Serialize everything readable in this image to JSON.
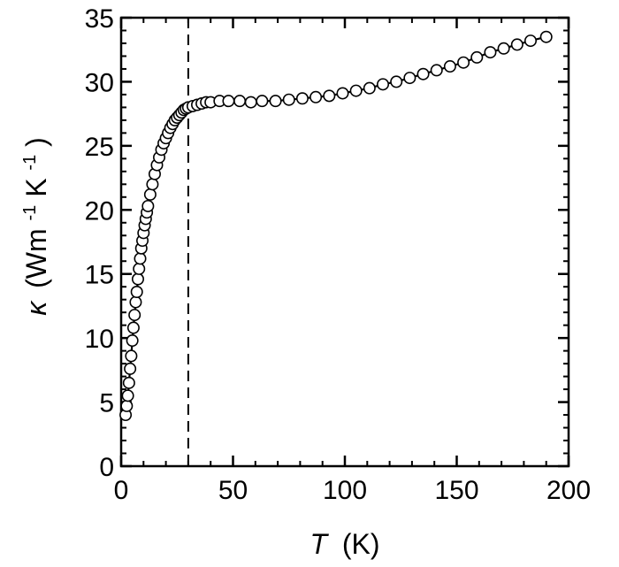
{
  "chart_data": {
    "type": "scatter",
    "xlabel": {
      "symbol": "T",
      "unit": "(K)"
    },
    "ylabel": {
      "symbol": "κ",
      "open": "(Wm",
      "exp1": "-1",
      "mid": "K",
      "exp2": "-1",
      "close": ")"
    },
    "xlim": [
      0,
      200
    ],
    "ylim": [
      0,
      35
    ],
    "xticks": [
      "0",
      "50",
      "100",
      "150",
      "200"
    ],
    "yticks": [
      "0",
      "5",
      "10",
      "15",
      "20",
      "25",
      "30",
      "35"
    ],
    "xtick_values": [
      0,
      50,
      100,
      150,
      200
    ],
    "ytick_values": [
      0,
      5,
      10,
      15,
      20,
      25,
      30,
      35
    ],
    "x_minor_step": 10,
    "y_minor_step": 1,
    "grid": false,
    "reference_line": {
      "style": "dashed",
      "x": 30
    },
    "series": [
      {
        "marker": "open-circle",
        "line": "solid",
        "x": [
          2,
          2.5,
          3,
          3.5,
          4,
          4.5,
          5,
          5.5,
          6,
          6.5,
          7,
          7.5,
          8,
          8.5,
          9,
          9.5,
          10,
          10.5,
          11,
          11.5,
          12,
          13,
          14,
          15,
          16,
          17,
          18,
          19,
          20,
          21,
          22,
          23,
          24,
          25,
          26,
          27,
          28,
          29,
          30,
          32,
          34,
          36,
          38,
          40,
          44,
          48,
          53,
          58,
          63,
          69,
          75,
          81,
          87,
          93,
          99,
          105,
          111,
          117,
          123,
          129,
          135,
          141,
          147,
          153,
          159,
          165,
          171,
          177,
          183,
          190
        ],
        "y": [
          4.0,
          4.7,
          5.5,
          6.5,
          7.6,
          8.6,
          9.8,
          10.8,
          11.8,
          12.8,
          13.6,
          14.6,
          15.4,
          16.2,
          17.0,
          17.6,
          18.2,
          18.8,
          19.3,
          19.8,
          20.3,
          21.2,
          22.0,
          22.8,
          23.5,
          24.1,
          24.7,
          25.2,
          25.6,
          26.0,
          26.4,
          26.7,
          27.0,
          27.2,
          27.4,
          27.6,
          27.8,
          27.9,
          28.0,
          28.1,
          28.2,
          28.3,
          28.4,
          28.4,
          28.5,
          28.5,
          28.5,
          28.4,
          28.5,
          28.5,
          28.6,
          28.7,
          28.8,
          28.9,
          29.1,
          29.3,
          29.5,
          29.8,
          30.0,
          30.3,
          30.6,
          30.9,
          31.2,
          31.5,
          31.9,
          32.3,
          32.6,
          32.9,
          33.2,
          33.5
        ]
      }
    ]
  }
}
